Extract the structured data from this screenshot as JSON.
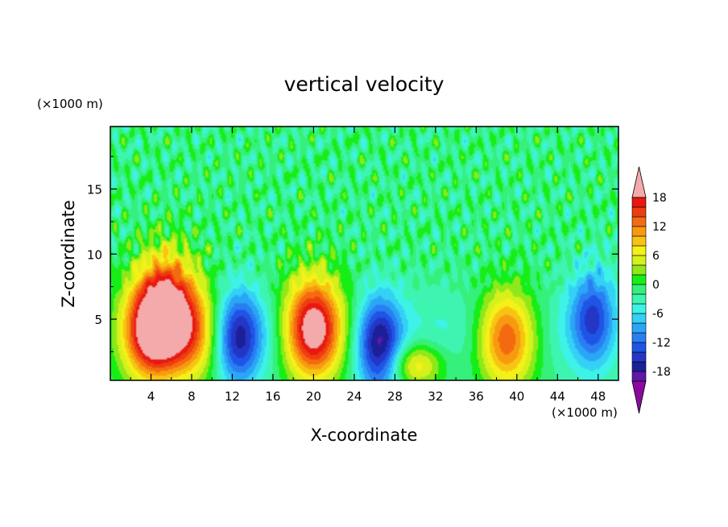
{
  "chart_data": {
    "type": "heatmap",
    "title": "vertical velocity",
    "xlabel": "X-coordinate",
    "ylabel": "Z-coordinate",
    "x_unit": "(×1000 m)",
    "y_unit": "(×1000 m)",
    "xlim": [
      0,
      50
    ],
    "ylim": [
      0.3,
      19.8
    ],
    "x_ticks": [
      "4",
      "8",
      "12",
      "16",
      "20",
      "24",
      "28",
      "32",
      "36",
      "40",
      "44",
      "48"
    ],
    "y_ticks": [
      "5",
      "10",
      "15"
    ],
    "colorbar": {
      "labels": [
        "18",
        "12",
        "6",
        "0",
        "-6",
        "-12",
        "-18"
      ],
      "levels": [
        -20,
        -18,
        -16,
        -14,
        -12,
        -10,
        -8,
        -6,
        -4,
        -2,
        0,
        2,
        4,
        6,
        8,
        10,
        12,
        14,
        16,
        18,
        20
      ],
      "colors": [
        "#8a0aa0",
        "#5f18a8",
        "#1c1f98",
        "#2336c6",
        "#1f55e6",
        "#2a7ef2",
        "#2aa6f6",
        "#35d0f5",
        "#3df2e6",
        "#3df5b0",
        "#35f07a",
        "#16ee16",
        "#8ee81a",
        "#d6f01c",
        "#f4f018",
        "#f7c412",
        "#f79a10",
        "#f46a10",
        "#ee3d10",
        "#e81810",
        "#f4aaaa"
      ],
      "extend": "both"
    },
    "features": [
      {
        "x": 4,
        "z": 4,
        "w": 21,
        "type": "updraft"
      },
      {
        "x": 8,
        "z": 4,
        "w": 13,
        "type": "updraft"
      },
      {
        "x": 5.5,
        "z": 7,
        "w": 9,
        "type": "updraft"
      },
      {
        "x": 12.5,
        "z": 3.5,
        "w": -13,
        "type": "downdraft"
      },
      {
        "x": 20,
        "z": 4,
        "w": 20,
        "type": "updraft"
      },
      {
        "x": 26.5,
        "z": 3,
        "w": -17,
        "type": "downdraft"
      },
      {
        "x": 30,
        "z": 1.5,
        "w": 10,
        "type": "updraft"
      },
      {
        "x": 39,
        "z": 3.5,
        "w": 16,
        "type": "updraft"
      },
      {
        "x": 47.5,
        "z": 5,
        "w": -13,
        "type": "downdraft"
      }
    ]
  }
}
